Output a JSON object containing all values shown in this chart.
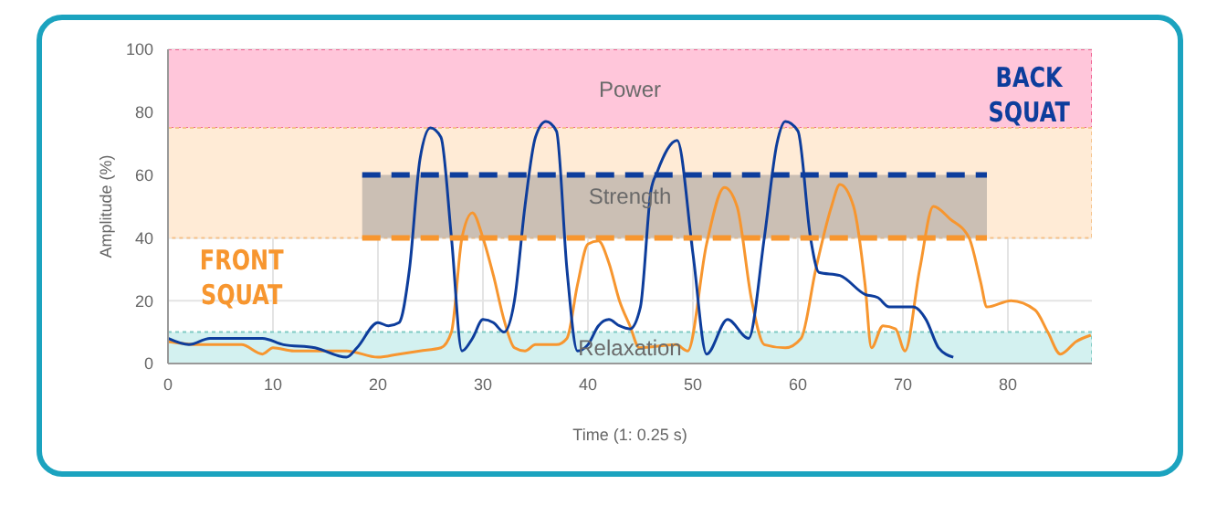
{
  "chart_data": {
    "type": "line",
    "xlabel": "Time (1: 0.25 s)",
    "ylabel": "Amplitude (%)",
    "xlim": [
      0,
      88
    ],
    "xticks": [
      0,
      10,
      20,
      30,
      40,
      50,
      60,
      70,
      80
    ],
    "ylim": [
      0,
      100
    ],
    "yticks": [
      0,
      20,
      40,
      60,
      80,
      100
    ],
    "grid": true,
    "marker": "none",
    "legend": false,
    "line_style": "solid",
    "bands": [
      {
        "axis": "y",
        "from": 75,
        "to": 100,
        "label": "Power",
        "color": "#ffc6da"
      },
      {
        "axis": "y",
        "from": 40,
        "to": 75,
        "label": "Strength",
        "color": "#ffebd6"
      },
      {
        "axis": "y",
        "from": 0,
        "to": 10,
        "label": "Relaxation",
        "color": "#d3f1f0"
      }
    ],
    "series": [
      {
        "name": "FRONT SQUAT",
        "color": "#f7962f",
        "x": [
          0,
          3,
          5,
          7,
          9,
          10,
          12,
          15,
          17,
          20,
          22,
          24,
          26,
          27,
          28,
          29,
          30,
          31,
          32,
          33,
          34,
          35,
          37,
          38,
          39,
          40,
          41,
          42,
          43,
          44,
          44.9,
          48.4,
          49.5,
          51.3,
          53,
          54.2,
          55.6,
          56.8,
          58.8,
          60.3,
          61.7,
          63.2,
          64,
          65.3,
          66.4,
          67,
          68.1,
          69.3,
          70.2,
          71.6,
          72.9,
          74.5,
          76.3,
          77.4,
          78,
          80.3,
          82.6,
          83.8,
          85,
          86.5,
          87.9
        ],
        "values": [
          7,
          6,
          6,
          6,
          3,
          5,
          4,
          4,
          4,
          2,
          3,
          4,
          5,
          10,
          40,
          48,
          40,
          28,
          14,
          5,
          4,
          6,
          6,
          8,
          25,
          38,
          39,
          32,
          20,
          12,
          5,
          6,
          4,
          38,
          56,
          50,
          20,
          6,
          5,
          8,
          30,
          50,
          57,
          50,
          25,
          5,
          12,
          11,
          4,
          30,
          50,
          46,
          40,
          26,
          18,
          20,
          17,
          10,
          3,
          7,
          9
        ]
      },
      {
        "name": "BACK SQUAT",
        "color": "#0d3d9c",
        "x": [
          0,
          2,
          4,
          9,
          11,
          14,
          17,
          18,
          20,
          21,
          22,
          23,
          24,
          25,
          26,
          27,
          28,
          29,
          30,
          31,
          32,
          33,
          34,
          35,
          36,
          37,
          38,
          39,
          40,
          41,
          42,
          43,
          44,
          45,
          46,
          46.6,
          48.5,
          50,
          51.3,
          53.3,
          55.3,
          56.8,
          58,
          58.8,
          60,
          61.2,
          62,
          64,
          66.4,
          67.6,
          68.7,
          71,
          72.2,
          73.4,
          74.8
        ],
        "values": [
          8,
          6,
          8,
          8,
          6,
          5,
          2,
          5,
          13,
          12,
          13,
          30,
          65,
          75,
          72,
          40,
          4,
          8,
          14,
          13,
          10,
          20,
          50,
          72,
          77,
          74,
          30,
          4,
          6,
          12,
          14,
          12,
          11,
          18,
          55,
          61,
          71,
          35,
          3,
          14,
          8,
          40,
          70,
          77,
          74,
          40,
          29,
          28,
          22,
          21,
          18,
          18,
          14,
          5,
          2
        ]
      },
      {
        "color": "#0d3d9c",
        "line_style": "dashed",
        "x": [
          18.5,
          78
        ],
        "values": [
          60,
          60
        ],
        "lower": [
          40,
          40
        ],
        "upper": [
          60,
          60
        ]
      },
      {
        "color": "#f7962f",
        "line_style": "dashed",
        "x": [
          18.5,
          78
        ],
        "values": [
          40,
          40
        ]
      }
    ]
  }
}
